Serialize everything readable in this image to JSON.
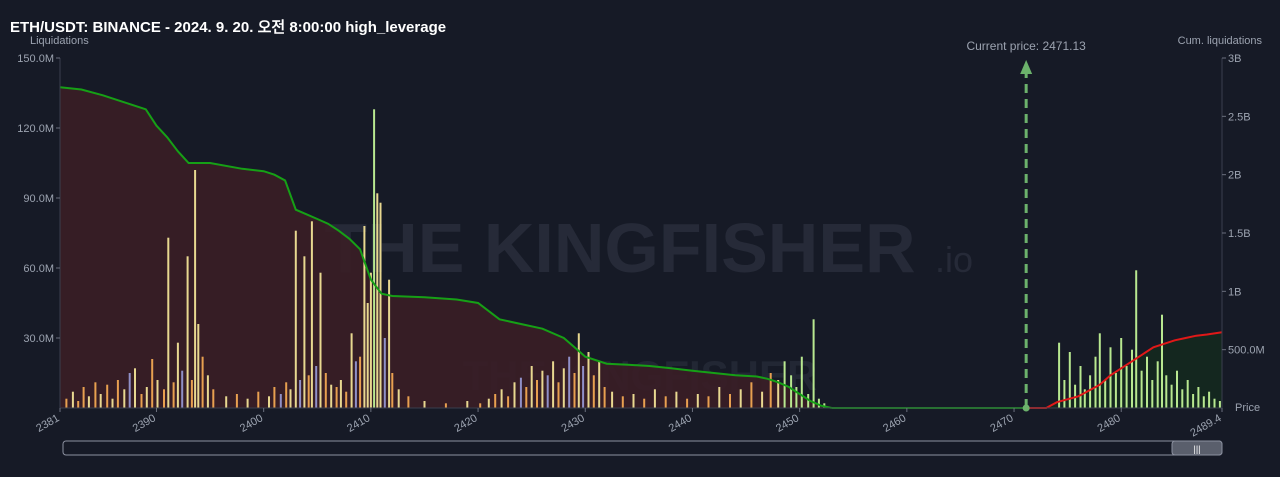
{
  "header": {
    "title": "ETH/USDT: BINANCE - 2024. 9. 20. 오전 8:00:00 high_leverage"
  },
  "watermark": {
    "text": "THE KINGFISHER",
    "suffix": ".io"
  },
  "chart_data": {
    "type": "bar",
    "title": "ETH/USDT: BINANCE - 2024. 9. 20. 오전 8:00:00 high_leverage",
    "current_price_label": "Current price: 2471.13",
    "current_price": 2471.13,
    "xlabel": "Price",
    "ylabel_left": "Liquidations",
    "ylabel_right": "Cum. liquidations",
    "xlim": [
      2381,
      2489.4
    ],
    "ylim_left": [
      0,
      150
    ],
    "ylim_right": [
      0,
      3
    ],
    "x_ticks": [
      "2381",
      "2390",
      "2400",
      "2410",
      "2420",
      "2430",
      "2440",
      "2450",
      "2460",
      "2470",
      "2480",
      "2489.4"
    ],
    "x_tick_values": [
      2381,
      2390,
      2400,
      2410,
      2420,
      2430,
      2440,
      2450,
      2460,
      2470,
      2480,
      2489.4
    ],
    "y_left_ticks": [
      "150.0M",
      "120.0M",
      "90.0M",
      "60.0M",
      "30.0M"
    ],
    "y_left_tick_values": [
      150,
      120,
      90,
      60,
      30
    ],
    "y_right_ticks": [
      "3B",
      "2.5B",
      "2B",
      "1.5B",
      "1B",
      "500.0M"
    ],
    "y_right_tick_values": [
      3,
      2.5,
      2,
      1.5,
      1,
      0.5
    ],
    "colors": {
      "long_cum": "#16a016",
      "short_cum": "#e01818",
      "long_fill": "#3a1e26",
      "short_fill": "#14291f",
      "bar_yellow": "#e8d890",
      "bar_orange": "#e8a050",
      "bar_purple": "#9090c8",
      "bar_green": "#b8e890",
      "price_line": "#6cb26c",
      "text": "#9ca3b0"
    },
    "long_cumulative": {
      "x": [
        2381,
        2383,
        2385,
        2387,
        2389,
        2390,
        2391,
        2392,
        2393,
        2395,
        2398,
        2400,
        2401,
        2402,
        2403,
        2404,
        2405,
        2406,
        2407,
        2408,
        2409,
        2410,
        2411,
        2412,
        2415,
        2418,
        2420,
        2422,
        2424,
        2426,
        2428,
        2429,
        2430,
        2432,
        2434,
        2436,
        2438,
        2440,
        2442,
        2444,
        2446,
        2447,
        2448,
        2449,
        2450,
        2451,
        2452,
        2453
      ],
      "y": [
        2.75,
        2.73,
        2.68,
        2.62,
        2.56,
        2.42,
        2.32,
        2.2,
        2.1,
        2.1,
        2.05,
        2.03,
        2.0,
        1.95,
        1.7,
        1.66,
        1.62,
        1.58,
        1.52,
        1.45,
        1.36,
        1.1,
        0.98,
        0.96,
        0.95,
        0.93,
        0.9,
        0.76,
        0.72,
        0.68,
        0.6,
        0.52,
        0.44,
        0.38,
        0.37,
        0.36,
        0.34,
        0.32,
        0.3,
        0.28,
        0.27,
        0.25,
        0.22,
        0.18,
        0.12,
        0.06,
        0.02,
        0
      ]
    },
    "short_cumulative": {
      "x": [
        2471.13,
        2473,
        2474,
        2476,
        2477,
        2478,
        2479,
        2480,
        2481,
        2482,
        2483,
        2484,
        2485,
        2486,
        2487,
        2488,
        2489.4
      ],
      "y": [
        0,
        0,
        0.05,
        0.1,
        0.15,
        0.2,
        0.28,
        0.34,
        0.4,
        0.46,
        0.52,
        0.55,
        0.58,
        0.6,
        0.62,
        0.63,
        0.65
      ]
    },
    "bars": [
      {
        "x": 2381.6,
        "v": 4,
        "c": "orange"
      },
      {
        "x": 2382.2,
        "v": 7,
        "c": "yellow"
      },
      {
        "x": 2382.7,
        "v": 3,
        "c": "orange"
      },
      {
        "x": 2383.2,
        "v": 9,
        "c": "orange"
      },
      {
        "x": 2383.7,
        "v": 5,
        "c": "yellow"
      },
      {
        "x": 2384.3,
        "v": 11,
        "c": "orange"
      },
      {
        "x": 2384.8,
        "v": 6,
        "c": "yellow"
      },
      {
        "x": 2385.4,
        "v": 10,
        "c": "orange"
      },
      {
        "x": 2385.9,
        "v": 4,
        "c": "yellow"
      },
      {
        "x": 2386.4,
        "v": 12,
        "c": "orange"
      },
      {
        "x": 2387.0,
        "v": 8,
        "c": "yellow"
      },
      {
        "x": 2387.5,
        "v": 15,
        "c": "purple"
      },
      {
        "x": 2388.0,
        "v": 17,
        "c": "yellow"
      },
      {
        "x": 2388.6,
        "v": 6,
        "c": "orange"
      },
      {
        "x": 2389.1,
        "v": 9,
        "c": "yellow"
      },
      {
        "x": 2389.6,
        "v": 21,
        "c": "orange"
      },
      {
        "x": 2390.1,
        "v": 12,
        "c": "yellow"
      },
      {
        "x": 2390.7,
        "v": 8,
        "c": "orange"
      },
      {
        "x": 2391.1,
        "v": 73,
        "c": "yellow"
      },
      {
        "x": 2391.6,
        "v": 11,
        "c": "orange"
      },
      {
        "x": 2392.0,
        "v": 28,
        "c": "yellow"
      },
      {
        "x": 2392.4,
        "v": 16,
        "c": "purple"
      },
      {
        "x": 2392.9,
        "v": 65,
        "c": "yellow"
      },
      {
        "x": 2393.3,
        "v": 12,
        "c": "orange"
      },
      {
        "x": 2393.6,
        "v": 102,
        "c": "yellow"
      },
      {
        "x": 2393.9,
        "v": 36,
        "c": "yellow"
      },
      {
        "x": 2394.3,
        "v": 22,
        "c": "orange"
      },
      {
        "x": 2394.8,
        "v": 14,
        "c": "yellow"
      },
      {
        "x": 2395.3,
        "v": 8,
        "c": "orange"
      },
      {
        "x": 2396.5,
        "v": 5,
        "c": "yellow"
      },
      {
        "x": 2397.5,
        "v": 6,
        "c": "orange"
      },
      {
        "x": 2398.5,
        "v": 4,
        "c": "yellow"
      },
      {
        "x": 2399.5,
        "v": 7,
        "c": "orange"
      },
      {
        "x": 2400.5,
        "v": 5,
        "c": "yellow"
      },
      {
        "x": 2401.0,
        "v": 9,
        "c": "orange"
      },
      {
        "x": 2401.6,
        "v": 6,
        "c": "purple"
      },
      {
        "x": 2402.1,
        "v": 11,
        "c": "orange"
      },
      {
        "x": 2402.5,
        "v": 8,
        "c": "yellow"
      },
      {
        "x": 2403.0,
        "v": 76,
        "c": "yellow"
      },
      {
        "x": 2403.4,
        "v": 12,
        "c": "purple"
      },
      {
        "x": 2403.8,
        "v": 65,
        "c": "yellow"
      },
      {
        "x": 2404.2,
        "v": 14,
        "c": "orange"
      },
      {
        "x": 2404.5,
        "v": 80,
        "c": "yellow"
      },
      {
        "x": 2404.9,
        "v": 18,
        "c": "purple"
      },
      {
        "x": 2405.3,
        "v": 58,
        "c": "yellow"
      },
      {
        "x": 2405.8,
        "v": 15,
        "c": "orange"
      },
      {
        "x": 2406.3,
        "v": 10,
        "c": "yellow"
      },
      {
        "x": 2406.8,
        "v": 9,
        "c": "orange"
      },
      {
        "x": 2407.2,
        "v": 12,
        "c": "yellow"
      },
      {
        "x": 2407.7,
        "v": 7,
        "c": "orange"
      },
      {
        "x": 2408.2,
        "v": 32,
        "c": "yellow"
      },
      {
        "x": 2408.6,
        "v": 20,
        "c": "purple"
      },
      {
        "x": 2409.0,
        "v": 22,
        "c": "orange"
      },
      {
        "x": 2409.4,
        "v": 78,
        "c": "yellow"
      },
      {
        "x": 2409.7,
        "v": 45,
        "c": "yellow"
      },
      {
        "x": 2410.0,
        "v": 58,
        "c": "yellow"
      },
      {
        "x": 2410.3,
        "v": 128,
        "c": "green"
      },
      {
        "x": 2410.6,
        "v": 92,
        "c": "yellow"
      },
      {
        "x": 2410.9,
        "v": 88,
        "c": "yellow"
      },
      {
        "x": 2411.3,
        "v": 30,
        "c": "purple"
      },
      {
        "x": 2411.7,
        "v": 55,
        "c": "yellow"
      },
      {
        "x": 2412.0,
        "v": 15,
        "c": "orange"
      },
      {
        "x": 2412.6,
        "v": 8,
        "c": "yellow"
      },
      {
        "x": 2413.5,
        "v": 5,
        "c": "orange"
      },
      {
        "x": 2415.0,
        "v": 3,
        "c": "yellow"
      },
      {
        "x": 2417.0,
        "v": 2,
        "c": "orange"
      },
      {
        "x": 2419.0,
        "v": 3,
        "c": "yellow"
      },
      {
        "x": 2420.2,
        "v": 2,
        "c": "orange"
      },
      {
        "x": 2421.0,
        "v": 4,
        "c": "yellow"
      },
      {
        "x": 2421.6,
        "v": 6,
        "c": "orange"
      },
      {
        "x": 2422.2,
        "v": 8,
        "c": "yellow"
      },
      {
        "x": 2422.8,
        "v": 5,
        "c": "orange"
      },
      {
        "x": 2423.4,
        "v": 11,
        "c": "yellow"
      },
      {
        "x": 2424.0,
        "v": 13,
        "c": "purple"
      },
      {
        "x": 2424.5,
        "v": 9,
        "c": "orange"
      },
      {
        "x": 2425.0,
        "v": 18,
        "c": "yellow"
      },
      {
        "x": 2425.5,
        "v": 12,
        "c": "orange"
      },
      {
        "x": 2426.0,
        "v": 16,
        "c": "yellow"
      },
      {
        "x": 2426.5,
        "v": 14,
        "c": "purple"
      },
      {
        "x": 2427.0,
        "v": 20,
        "c": "yellow"
      },
      {
        "x": 2427.5,
        "v": 11,
        "c": "orange"
      },
      {
        "x": 2428.0,
        "v": 17,
        "c": "yellow"
      },
      {
        "x": 2428.5,
        "v": 22,
        "c": "purple"
      },
      {
        "x": 2429.0,
        "v": 15,
        "c": "orange"
      },
      {
        "x": 2429.4,
        "v": 32,
        "c": "yellow"
      },
      {
        "x": 2429.8,
        "v": 18,
        "c": "purple"
      },
      {
        "x": 2430.3,
        "v": 24,
        "c": "yellow"
      },
      {
        "x": 2430.8,
        "v": 14,
        "c": "orange"
      },
      {
        "x": 2431.3,
        "v": 20,
        "c": "yellow"
      },
      {
        "x": 2431.8,
        "v": 9,
        "c": "orange"
      },
      {
        "x": 2432.5,
        "v": 7,
        "c": "yellow"
      },
      {
        "x": 2433.5,
        "v": 5,
        "c": "orange"
      },
      {
        "x": 2434.5,
        "v": 6,
        "c": "yellow"
      },
      {
        "x": 2435.5,
        "v": 4,
        "c": "orange"
      },
      {
        "x": 2436.5,
        "v": 8,
        "c": "yellow"
      },
      {
        "x": 2437.5,
        "v": 5,
        "c": "orange"
      },
      {
        "x": 2438.5,
        "v": 7,
        "c": "yellow"
      },
      {
        "x": 2439.5,
        "v": 4,
        "c": "orange"
      },
      {
        "x": 2440.5,
        "v": 6,
        "c": "yellow"
      },
      {
        "x": 2441.5,
        "v": 5,
        "c": "orange"
      },
      {
        "x": 2442.5,
        "v": 9,
        "c": "yellow"
      },
      {
        "x": 2443.5,
        "v": 6,
        "c": "orange"
      },
      {
        "x": 2444.5,
        "v": 8,
        "c": "yellow"
      },
      {
        "x": 2445.5,
        "v": 11,
        "c": "orange"
      },
      {
        "x": 2446.5,
        "v": 7,
        "c": "yellow"
      },
      {
        "x": 2447.3,
        "v": 15,
        "c": "orange"
      },
      {
        "x": 2448.0,
        "v": 12,
        "c": "yellow"
      },
      {
        "x": 2448.6,
        "v": 20,
        "c": "green"
      },
      {
        "x": 2449.2,
        "v": 14,
        "c": "green"
      },
      {
        "x": 2449.7,
        "v": 9,
        "c": "green"
      },
      {
        "x": 2450.2,
        "v": 22,
        "c": "green"
      },
      {
        "x": 2450.8,
        "v": 6,
        "c": "green"
      },
      {
        "x": 2451.3,
        "v": 38,
        "c": "green"
      },
      {
        "x": 2451.8,
        "v": 4,
        "c": "green"
      },
      {
        "x": 2452.3,
        "v": 2,
        "c": "green"
      },
      {
        "x": 2474.2,
        "v": 28,
        "c": "green"
      },
      {
        "x": 2474.7,
        "v": 12,
        "c": "green"
      },
      {
        "x": 2475.2,
        "v": 24,
        "c": "green"
      },
      {
        "x": 2475.7,
        "v": 10,
        "c": "green"
      },
      {
        "x": 2476.2,
        "v": 18,
        "c": "green"
      },
      {
        "x": 2476.6,
        "v": 8,
        "c": "green"
      },
      {
        "x": 2477.1,
        "v": 14,
        "c": "green"
      },
      {
        "x": 2477.6,
        "v": 22,
        "c": "green"
      },
      {
        "x": 2478.0,
        "v": 32,
        "c": "green"
      },
      {
        "x": 2478.5,
        "v": 12,
        "c": "green"
      },
      {
        "x": 2479.0,
        "v": 26,
        "c": "green"
      },
      {
        "x": 2479.5,
        "v": 15,
        "c": "green"
      },
      {
        "x": 2480.0,
        "v": 30,
        "c": "green"
      },
      {
        "x": 2480.5,
        "v": 18,
        "c": "green"
      },
      {
        "x": 2481.0,
        "v": 25,
        "c": "green"
      },
      {
        "x": 2481.4,
        "v": 59,
        "c": "green"
      },
      {
        "x": 2481.9,
        "v": 16,
        "c": "green"
      },
      {
        "x": 2482.4,
        "v": 22,
        "c": "green"
      },
      {
        "x": 2482.9,
        "v": 12,
        "c": "green"
      },
      {
        "x": 2483.4,
        "v": 20,
        "c": "green"
      },
      {
        "x": 2483.8,
        "v": 40,
        "c": "green"
      },
      {
        "x": 2484.2,
        "v": 14,
        "c": "green"
      },
      {
        "x": 2484.7,
        "v": 10,
        "c": "green"
      },
      {
        "x": 2485.2,
        "v": 16,
        "c": "green"
      },
      {
        "x": 2485.7,
        "v": 8,
        "c": "green"
      },
      {
        "x": 2486.2,
        "v": 12,
        "c": "green"
      },
      {
        "x": 2486.7,
        "v": 6,
        "c": "green"
      },
      {
        "x": 2487.2,
        "v": 9,
        "c": "green"
      },
      {
        "x": 2487.7,
        "v": 5,
        "c": "green"
      },
      {
        "x": 2488.2,
        "v": 7,
        "c": "green"
      },
      {
        "x": 2488.7,
        "v": 4,
        "c": "green"
      },
      {
        "x": 2489.2,
        "v": 3,
        "c": "green"
      }
    ]
  }
}
